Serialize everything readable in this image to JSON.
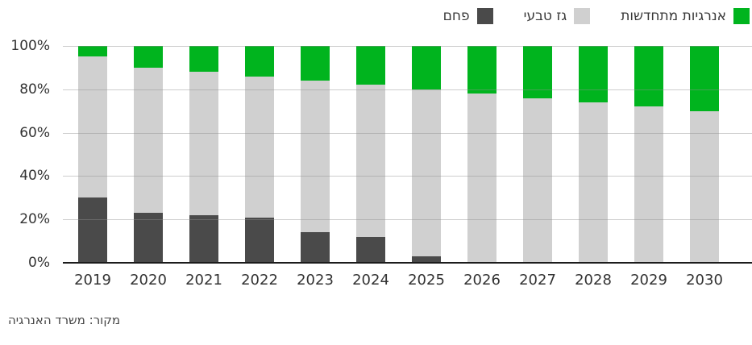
{
  "legend": {
    "items": [
      {
        "id": "renewables",
        "label": "אנרגיות מתחדשות",
        "color": "#00b41e"
      },
      {
        "id": "natural-gas",
        "label": "גז טבעי",
        "color": "#d0d0d0"
      },
      {
        "id": "coal",
        "label": "פחם",
        "color": "#4a4a4a"
      }
    ]
  },
  "source_note": "מקור: משרד האנרגיה",
  "chart_data": {
    "type": "bar",
    "stacked": true,
    "stack_unit": "percent",
    "title": "",
    "xlabel": "",
    "ylabel": "",
    "ylim": [
      0,
      100
    ],
    "grid": true,
    "legend_position": "top-right",
    "categories": [
      "2019",
      "2020",
      "2021",
      "2022",
      "2023",
      "2024",
      "2025",
      "2026",
      "2027",
      "2028",
      "2029",
      "2030"
    ],
    "series": [
      {
        "id": "coal",
        "name": "פחם",
        "color": "#4a4a4a",
        "values": [
          30,
          23,
          22,
          21,
          14,
          12,
          3,
          0,
          0,
          0,
          0,
          0
        ]
      },
      {
        "id": "natural-gas",
        "name": "גז טבעי",
        "color": "#d0d0d0",
        "values": [
          65,
          67,
          66,
          65,
          70,
          70,
          77,
          78,
          76,
          74,
          72,
          70
        ]
      },
      {
        "id": "renewables",
        "name": "אנרגיות מתחדשות",
        "color": "#00b41e",
        "values": [
          5,
          10,
          12,
          14,
          16,
          18,
          20,
          22,
          24,
          26,
          28,
          30
        ]
      }
    ],
    "y_ticks": [
      {
        "label": "100%",
        "value": 100
      },
      {
        "label": "80%",
        "value": 80
      },
      {
        "label": "60%",
        "value": 60
      },
      {
        "label": "40%",
        "value": 40
      },
      {
        "label": "20%",
        "value": 20
      },
      {
        "label": "0%",
        "value": 0
      }
    ]
  }
}
